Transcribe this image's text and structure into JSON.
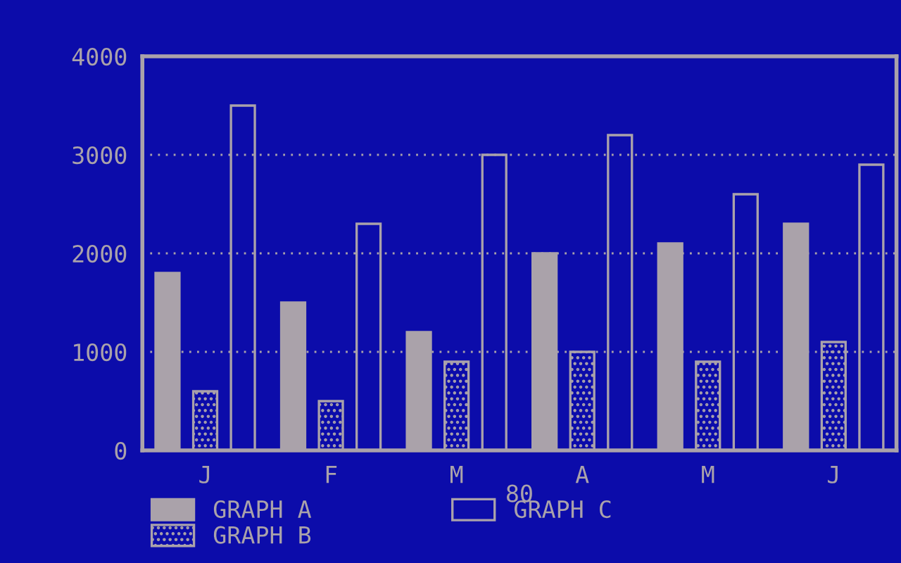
{
  "chart_data": {
    "type": "bar",
    "xlabel": "80",
    "categories": [
      "J",
      "F",
      "M",
      "A",
      "M",
      "J"
    ],
    "series": [
      {
        "name": "GRAPH A",
        "color": "#aaa2aa",
        "values": [
          1800,
          1500,
          1200,
          2000,
          2100,
          2300
        ]
      },
      {
        "name": "GRAPH B",
        "color": "#aaa2aa",
        "values": [
          600,
          500,
          900,
          1000,
          900,
          1100
        ]
      },
      {
        "name": "GRAPH C",
        "color": "#aaa2aa",
        "values": [
          3500,
          2300,
          3000,
          3200,
          2600,
          2900
        ]
      }
    ],
    "ylim": [
      0,
      4000
    ],
    "yticks": [
      0,
      1000,
      2000,
      3000,
      4000
    ],
    "grid": "y",
    "legend": "bottom"
  }
}
